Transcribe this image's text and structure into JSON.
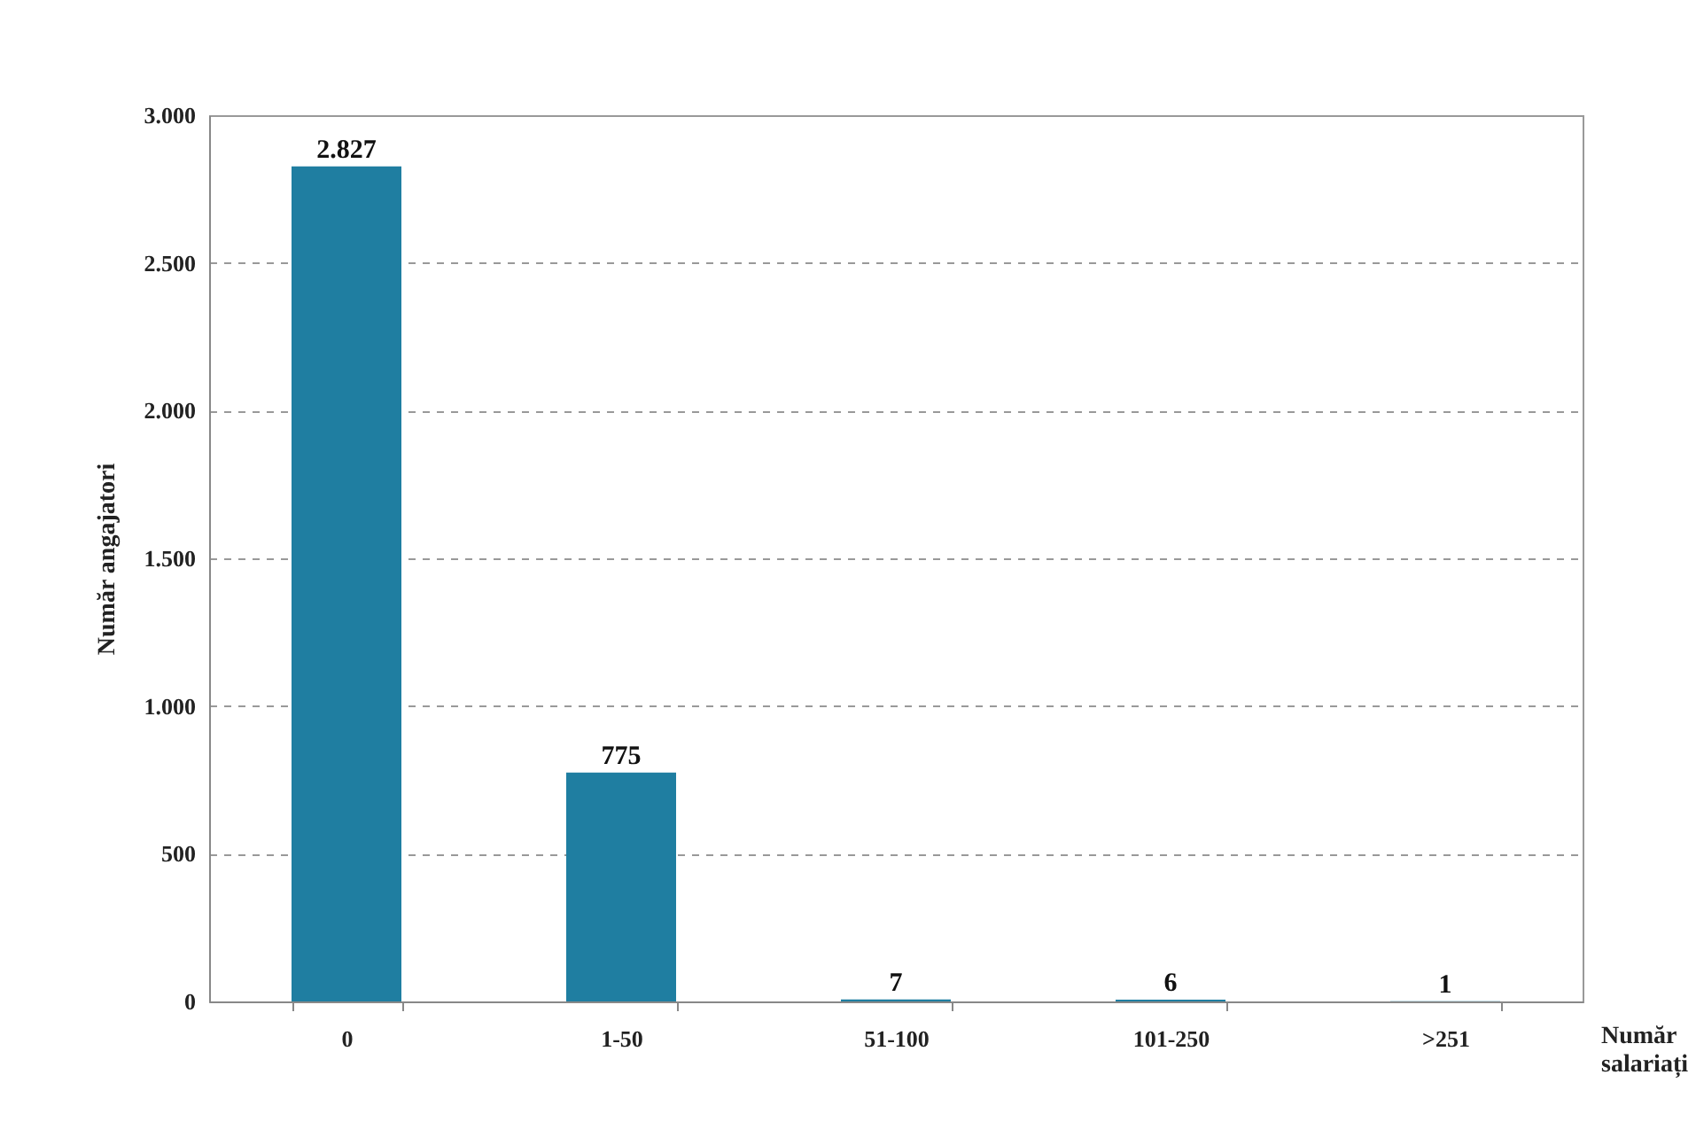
{
  "chart_data": {
    "type": "bar",
    "xlabel": "Număr salariați",
    "ylabel": "Număr angajatori",
    "categories": [
      "0",
      "1-50",
      "51-100",
      "101-250",
      ">251"
    ],
    "values": [
      2827,
      775,
      7,
      6,
      1
    ],
    "value_labels": [
      "2.827",
      "775",
      "7",
      "6",
      "1"
    ],
    "color": "#1f7ea1",
    "ylim": [
      0,
      3000
    ],
    "yticks": [
      {
        "value": 0,
        "label": "0"
      },
      {
        "value": 500,
        "label": "500"
      },
      {
        "value": 1000,
        "label": "1.000"
      },
      {
        "value": 1500,
        "label": "1.500"
      },
      {
        "value": 2000,
        "label": "2.000"
      },
      {
        "value": 2500,
        "label": "2.500"
      },
      {
        "value": 3000,
        "label": "3.000"
      }
    ],
    "grid": "y"
  }
}
